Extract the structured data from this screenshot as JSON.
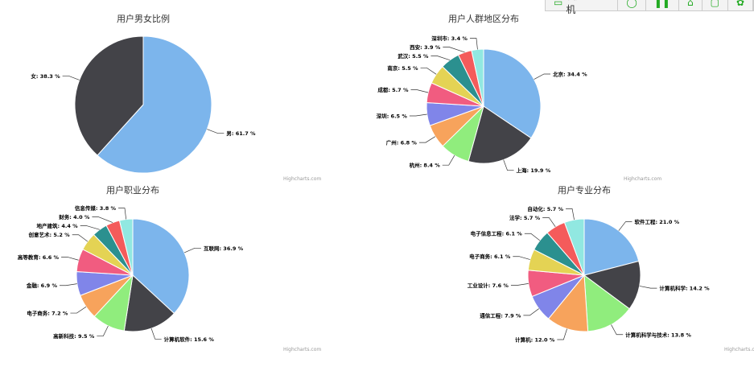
{
  "toolbar": {
    "send_label": "发送到手机",
    "icons": [
      "phone-icon",
      "chat-icon",
      "pause-icon",
      "home-icon",
      "export-icon",
      "settings-icon"
    ]
  },
  "credit": "Highcharts.com",
  "colors": [
    "#7cb5ec",
    "#434348",
    "#90ed7d",
    "#f7a35c",
    "#8085e9",
    "#f15c80",
    "#e4d354",
    "#2b908f",
    "#f45b5b",
    "#91e8e1"
  ],
  "chart_data": [
    {
      "type": "pie",
      "title": "用户男女比例",
      "categories": [
        "男",
        "女"
      ],
      "values": [
        61.7,
        38.3
      ]
    },
    {
      "type": "pie",
      "title": "用户人群地区分布",
      "categories": [
        "北京",
        "上海",
        "杭州",
        "广州",
        "深圳",
        "成都",
        "南京",
        "武汉",
        "西安",
        "深圳市"
      ],
      "values": [
        34.4,
        19.9,
        8.4,
        6.8,
        6.5,
        5.7,
        5.5,
        5.5,
        3.9,
        3.4
      ]
    },
    {
      "type": "pie",
      "title": "用户职业分布",
      "categories": [
        "互联网",
        "计算机软件",
        "高新科技",
        "电子商务",
        "金融",
        "高等教育",
        "创意艺术",
        "地产建筑",
        "财务",
        "信息传媒"
      ],
      "values": [
        36.9,
        15.6,
        9.5,
        7.2,
        6.9,
        6.6,
        5.2,
        4.4,
        4.0,
        3.8
      ]
    },
    {
      "type": "pie",
      "title": "用户专业分布",
      "categories": [
        "软件工程",
        "计算机科学",
        "计算机科学与技术",
        "计算机",
        "通信工程",
        "工业设计",
        "电子商务",
        "电子信息工程",
        "法学",
        "自动化"
      ],
      "values": [
        21.0,
        14.2,
        13.8,
        12.0,
        7.9,
        7.6,
        6.1,
        6.1,
        5.7,
        5.7
      ]
    }
  ]
}
